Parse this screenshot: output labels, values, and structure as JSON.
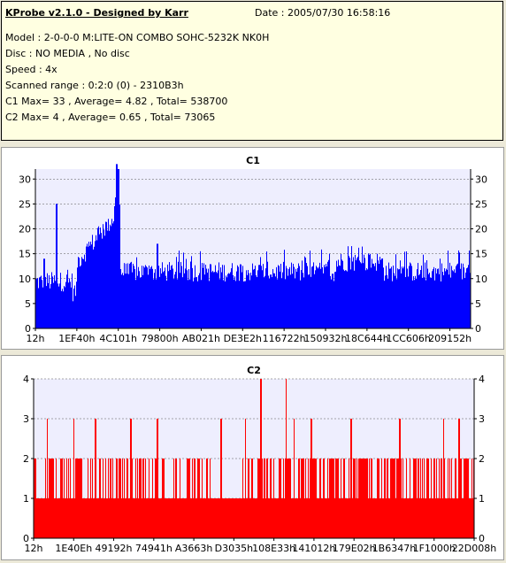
{
  "info": {
    "title": "KProbe v2.1.0 - Designed by Karr",
    "date": "Date : 2005/07/30 16:58:16",
    "lines": [
      "Model : 2-0-0-0 M:LITE-ON COMBO SOHC-5232K NK0H",
      "Disc : NO MEDIA , No disc",
      "Speed : 4x",
      "Scanned range : 0:2:0 (0) - 2310B3h",
      "C1 Max= 33 , Average= 4.82 , Total= 538700",
      "C2 Max= 4 , Average= 0.65 , Total= 73065"
    ]
  },
  "colors": {
    "c1_bar": "#0000ff",
    "c2_bar": "#ff0000",
    "plot_bg": "#eeeefe",
    "info_bg": "#ffffe1"
  },
  "chart_data": [
    {
      "type": "bar",
      "title": "C1",
      "ylim": [
        0,
        32
      ],
      "y_ticks": [
        0,
        5,
        10,
        15,
        20,
        25,
        30
      ],
      "x_tick_labels": [
        "12h",
        "1EF40h",
        "4C101h",
        "79800h",
        "AB021h",
        "DE3E2h",
        "116722h",
        "150932h",
        "18C644h",
        "1CC606h",
        "209152h"
      ],
      "grid": "horizontal dashed",
      "series": [
        {
          "segments": [
            {
              "x_start": 0,
              "x_end": 0.085,
              "baseline": 9,
              "range": [
                6,
                14
              ],
              "peaks": [
                {
                  "x": 0.048,
                  "v": 25
                },
                {
                  "x": 0.02,
                  "v": 14
                }
              ]
            },
            {
              "x_start": 0.085,
              "x_end": 0.095,
              "baseline": 7,
              "range": [
                5,
                10
              ]
            },
            {
              "x_start": 0.095,
              "x_end": 0.18,
              "baseline": 13,
              "range": [
                10,
                22
              ],
              "rise_to": 22
            },
            {
              "x_start": 0.18,
              "x_end": 0.195,
              "baseline": 25,
              "range": [
                20,
                33
              ],
              "peaks": [
                {
                  "x": 0.185,
                  "v": 33
                },
                {
                  "x": 0.19,
                  "v": 32
                }
              ]
            },
            {
              "x_start": 0.195,
              "x_end": 0.31,
              "baseline": 11,
              "range": [
                9,
                16
              ],
              "peaks": [
                {
                  "x": 0.28,
                  "v": 17
                }
              ]
            },
            {
              "x_start": 0.31,
              "x_end": 0.69,
              "baseline": 11,
              "range": [
                9,
                16
              ]
            },
            {
              "x_start": 0.69,
              "x_end": 0.8,
              "baseline": 13,
              "range": [
                10,
                19
              ]
            },
            {
              "x_start": 0.8,
              "x_end": 1.0,
              "baseline": 11,
              "range": [
                9,
                16
              ]
            }
          ]
        }
      ]
    },
    {
      "type": "bar",
      "title": "C2",
      "ylim": [
        0,
        4
      ],
      "y_ticks": [
        0,
        1,
        2,
        3,
        4
      ],
      "x_tick_labels": [
        "12h",
        "1E40Eh",
        "49192h",
        "74941h",
        "A3663h",
        "D3035h",
        "108E33h",
        "141012h",
        "179E02h",
        "1B6347h",
        "1F1000h",
        "22D008h"
      ],
      "grid": "horizontal dashed",
      "series": [
        {
          "levels": [
            0,
            1,
            2,
            3,
            4
          ],
          "description_of_distribution": "mostly 1 with frequent spikes to 2, occasional 3, two peaks at 4",
          "peaks_at_4": [
            0.515,
            0.572
          ],
          "peaks_at_3": [
            0.03,
            0.09,
            0.14,
            0.22,
            0.28,
            0.425,
            0.48,
            0.59,
            0.63,
            0.72,
            0.83,
            0.93,
            0.965
          ]
        }
      ]
    }
  ]
}
